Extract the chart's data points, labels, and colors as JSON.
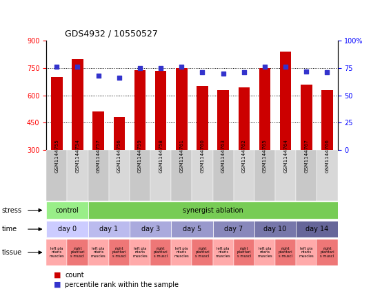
{
  "title": "GDS4932 / 10550527",
  "samples": [
    "GSM1144755",
    "GSM1144754",
    "GSM1144757",
    "GSM1144756",
    "GSM1144759",
    "GSM1144758",
    "GSM1144761",
    "GSM1144760",
    "GSM1144763",
    "GSM1144762",
    "GSM1144765",
    "GSM1144764",
    "GSM1144767",
    "GSM1144766"
  ],
  "bar_values": [
    700,
    800,
    510,
    480,
    740,
    735,
    750,
    650,
    630,
    645,
    750,
    840,
    660,
    630
  ],
  "dot_values": [
    76,
    76,
    68,
    66,
    75,
    75,
    76,
    71,
    70,
    71,
    76,
    76,
    72,
    71
  ],
  "ylim_left": [
    300,
    900
  ],
  "ylim_right": [
    0,
    100
  ],
  "yticks_left": [
    300,
    450,
    600,
    750,
    900
  ],
  "yticks_right": [
    0,
    25,
    50,
    75,
    100
  ],
  "ytick_right_labels": [
    "0",
    "25",
    "50",
    "75",
    "100%"
  ],
  "bar_color": "#cc0000",
  "dot_color": "#3333cc",
  "stress_blocks": [
    {
      "label": "control",
      "xstart": 0,
      "xend": 2,
      "color": "#99ee88"
    },
    {
      "label": "synergist ablation",
      "xstart": 2,
      "xend": 14,
      "color": "#77cc55"
    }
  ],
  "time_blocks": [
    {
      "label": "day 0",
      "xstart": 0,
      "xend": 2,
      "color": "#ccccff"
    },
    {
      "label": "day 1",
      "xstart": 2,
      "xend": 4,
      "color": "#bbbbee"
    },
    {
      "label": "day 3",
      "xstart": 4,
      "xend": 6,
      "color": "#aaaadd"
    },
    {
      "label": "day 5",
      "xstart": 6,
      "xend": 8,
      "color": "#9999cc"
    },
    {
      "label": "day 7",
      "xstart": 8,
      "xend": 10,
      "color": "#8888bb"
    },
    {
      "label": "day 10",
      "xstart": 10,
      "xend": 12,
      "color": "#7777aa"
    },
    {
      "label": "day 14",
      "xstart": 12,
      "xend": 14,
      "color": "#666699"
    }
  ],
  "tissue_colors": [
    "#ffaaaa",
    "#ee7777"
  ],
  "tissue_labels": [
    "left pla\nntaris\nmuscles",
    "right\nplantari\ns muscl"
  ]
}
